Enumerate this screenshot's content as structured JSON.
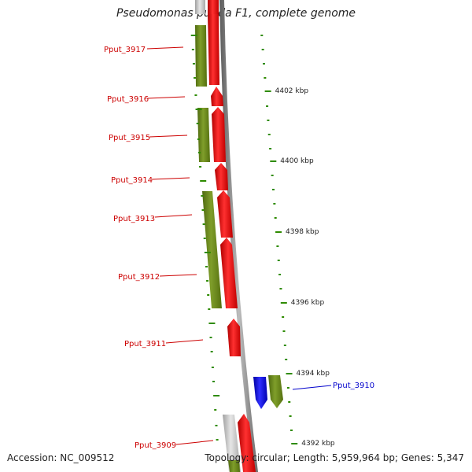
{
  "title": "Pseudomonas putida F1, complete genome",
  "accession": "Accession: NC_009512",
  "topology": "Topology: circular; Length: 5,959,964 bp; Genes: 5,347",
  "colors": {
    "backbone": "#7f7f7f",
    "gene_red": "#ff2020",
    "gene_green": "#6e8b1e",
    "gene_blue": "#1a1aee",
    "gene_grey": "#c8c8c8",
    "label_red": "#cc0000",
    "label_blue": "#0000cc",
    "tick": "#2e8b00"
  },
  "kbp_labels": [
    "4402 kbp",
    "4400 kbp",
    "4398 kbp",
    "4396 kbp",
    "4394 kbp",
    "4392 kbp"
  ],
  "genes": [
    {
      "name": "Pput_3917",
      "color": "red"
    },
    {
      "name": "Pput_3916",
      "color": "red"
    },
    {
      "name": "Pput_3915",
      "color": "red"
    },
    {
      "name": "Pput_3914",
      "color": "red"
    },
    {
      "name": "Pput_3913",
      "color": "red"
    },
    {
      "name": "Pput_3912",
      "color": "red"
    },
    {
      "name": "Pput_3911",
      "color": "red"
    },
    {
      "name": "Pput_3910",
      "color": "blue"
    },
    {
      "name": "Pput_3909",
      "color": "red"
    }
  ]
}
